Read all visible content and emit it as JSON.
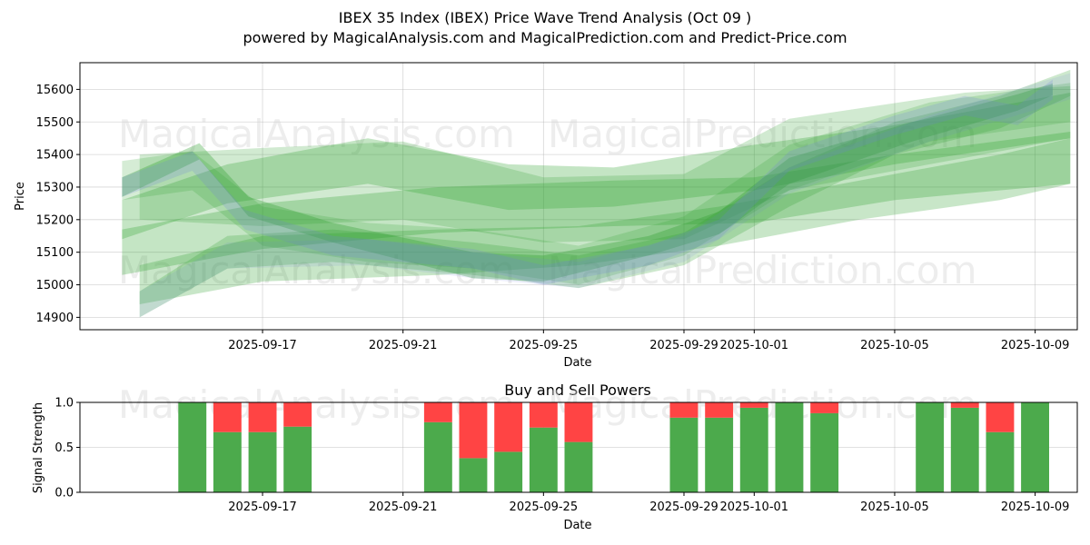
{
  "page": {
    "title_line1": "IBEX 35 Index (IBEX) Price Wave Trend Analysis (Oct 09 )",
    "title_line2": "powered by MagicalAnalysis.com and MagicalPrediction.com and Predict-Price.com"
  },
  "watermarks": [
    "MagicalAnalysis.com",
    "MagicalPrediction.com"
  ],
  "colors": {
    "green_wave": "#2ca02c",
    "blue_wave": "#6f7fe0",
    "buy": "#4caa4c",
    "sell": "#ff4444"
  },
  "chart_data": [
    {
      "type": "area",
      "title": "",
      "xlabel": "Date",
      "ylabel": "Price",
      "x_tick_labels": [
        "2025-09-17",
        "2025-09-21",
        "2025-09-25",
        "2025-09-29",
        "2025-10-01",
        "2025-10-05",
        "2025-10-09"
      ],
      "x_tick_days": [
        3,
        7,
        11,
        15,
        17,
        21,
        25
      ],
      "y_ticks": [
        14900,
        15000,
        15100,
        15200,
        15300,
        15400,
        15500,
        15600
      ],
      "xlim_days": [
        -2.2,
        26.2
      ],
      "ylim": [
        14862,
        15682
      ],
      "x_origin_date": "2025-09-14",
      "bands": [
        {
          "color": "green",
          "alpha": 0.32,
          "points": [
            [
              -1,
              15300,
              30
            ],
            [
              1.2,
              15410,
              25
            ],
            [
              2.6,
              15240,
              30
            ],
            [
              5,
              15160,
              30
            ],
            [
              9,
              15060,
              40
            ],
            [
              11,
              15050,
              40
            ],
            [
              14,
              15120,
              30
            ],
            [
              16,
              15190,
              35
            ],
            [
              18,
              15350,
              40
            ],
            [
              21.5,
              15470,
              30
            ],
            [
              24.5,
              15560,
              25
            ],
            [
              25.5,
              15600,
              18
            ]
          ]
        },
        {
          "color": "green",
          "alpha": 0.28,
          "points": [
            [
              -1,
              15200,
              60
            ],
            [
              2,
              15310,
              60
            ],
            [
              6,
              15380,
              70
            ],
            [
              10,
              15300,
              70
            ],
            [
              13,
              15300,
              60
            ],
            [
              17,
              15360,
              70
            ],
            [
              21,
              15430,
              60
            ],
            [
              26,
              15520,
              70
            ]
          ]
        },
        {
          "color": "green",
          "alpha": 0.28,
          "points": [
            [
              -1,
              15100,
              70
            ],
            [
              3,
              15180,
              70
            ],
            [
              8,
              15230,
              70
            ],
            [
              13,
              15250,
              70
            ],
            [
              17,
              15260,
              70
            ],
            [
              21,
              15330,
              70
            ],
            [
              26,
              15390,
              80
            ]
          ]
        },
        {
          "color": "green",
          "alpha": 0.26,
          "points": [
            [
              -0.5,
              15000,
              60
            ],
            [
              3,
              15080,
              70
            ],
            [
              8,
              15100,
              70
            ],
            [
              12,
              15120,
              60
            ],
            [
              16,
              15180,
              60
            ],
            [
              20,
              15260,
              60
            ],
            [
              24,
              15330,
              70
            ],
            [
              26,
              15380,
              70
            ]
          ]
        },
        {
          "color": "green",
          "alpha": 0.22,
          "points": [
            [
              -0.5,
              15300,
              100
            ],
            [
              3,
              15300,
              120
            ],
            [
              7,
              15320,
              120
            ],
            [
              11,
              15230,
              100
            ],
            [
              15,
              15240,
              100
            ],
            [
              18,
              15400,
              110
            ],
            [
              23,
              15490,
              100
            ],
            [
              26,
              15530,
              80
            ]
          ]
        },
        {
          "color": "green",
          "alpha": 0.24,
          "points": [
            [
              -0.5,
              14940,
              40
            ],
            [
              2,
              15100,
              50
            ],
            [
              5,
              15120,
              50
            ],
            [
              9,
              15080,
              50
            ],
            [
              12,
              15040,
              50
            ],
            [
              15,
              15110,
              50
            ],
            [
              18,
              15300,
              60
            ],
            [
              21,
              15450,
              50
            ],
            [
              24,
              15530,
              50
            ],
            [
              26,
              15620,
              40
            ]
          ]
        },
        {
          "color": "green",
          "alpha": 0.2,
          "points": [
            [
              -1,
              15320,
              60
            ],
            [
              1,
              15350,
              60
            ],
            [
              3,
              15180,
              60
            ],
            [
              6,
              15130,
              60
            ],
            [
              9,
              15110,
              60
            ],
            [
              12,
              15060,
              60
            ],
            [
              15,
              15150,
              60
            ],
            [
              18,
              15360,
              70
            ],
            [
              22,
              15500,
              60
            ],
            [
              26,
              15560,
              60
            ]
          ]
        },
        {
          "color": "blue",
          "alpha": 0.2,
          "points": [
            [
              -1,
              15300,
              30
            ],
            [
              1,
              15380,
              30
            ],
            [
              2.5,
              15200,
              30
            ],
            [
              5,
              15120,
              30
            ],
            [
              9,
              15080,
              30
            ],
            [
              11,
              15030,
              30
            ],
            [
              14,
              15090,
              30
            ],
            [
              16,
              15170,
              30
            ],
            [
              18,
              15380,
              30
            ],
            [
              21,
              15490,
              30
            ],
            [
              23,
              15550,
              30
            ],
            [
              24.5,
              15520,
              30
            ],
            [
              25.5,
              15600,
              30
            ]
          ]
        },
        {
          "color": "blue",
          "alpha": 0.12,
          "points": [
            [
              -0.5,
              14940,
              40
            ],
            [
              2,
              15090,
              40
            ],
            [
              6,
              15100,
              40
            ],
            [
              9,
              15060,
              40
            ],
            [
              12,
              15030,
              40
            ],
            [
              15,
              15110,
              40
            ],
            [
              18,
              15320,
              40
            ],
            [
              22,
              15480,
              40
            ],
            [
              26,
              15610,
              40
            ]
          ]
        }
      ]
    },
    {
      "type": "bar",
      "title": "Buy and Sell Powers",
      "xlabel": "Date",
      "ylabel": "Signal Strength",
      "ylim": [
        0,
        1
      ],
      "y_ticks": [
        "0.0",
        "0.5",
        "1.0"
      ],
      "x_tick_labels": [
        "2025-09-17",
        "2025-09-21",
        "2025-09-25",
        "2025-09-29",
        "2025-10-01",
        "2025-10-05",
        "2025-10-09"
      ],
      "x_tick_days": [
        3,
        7,
        11,
        15,
        17,
        21,
        25
      ],
      "xlim_days": [
        -2.2,
        26.2
      ],
      "x_origin_date": "2025-09-14",
      "series": [
        {
          "name": "Buy",
          "days": [
            1,
            2,
            3,
            4,
            8,
            9,
            10,
            11,
            12,
            15,
            16,
            17,
            18,
            19,
            22,
            23,
            24,
            25
          ],
          "values": [
            1.0,
            0.67,
            0.67,
            0.73,
            0.78,
            0.38,
            0.45,
            0.72,
            0.56,
            0.83,
            0.83,
            0.94,
            1.0,
            0.88,
            1.0,
            0.94,
            0.67,
            1.0
          ]
        },
        {
          "name": "Sell",
          "days": [
            1,
            2,
            3,
            4,
            8,
            9,
            10,
            11,
            12,
            15,
            16,
            17,
            18,
            19,
            22,
            23,
            24,
            25
          ],
          "values": [
            0.0,
            0.33,
            0.33,
            0.27,
            0.22,
            0.62,
            0.55,
            0.28,
            0.44,
            0.17,
            0.17,
            0.06,
            0.0,
            0.12,
            0.0,
            0.06,
            0.33,
            0.0
          ]
        }
      ]
    }
  ]
}
